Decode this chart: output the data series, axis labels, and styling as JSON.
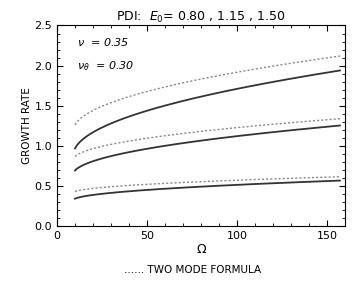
{
  "title": "PDI:  $E_0$= 0.80 , 1.15 , 1.50",
  "xlabel": "$\\Omega$",
  "ylabel": "GROWTH RATE",
  "legend_label": "...... TWO MODE FORMULA",
  "annotation1": "$\\nu$  = 0.35",
  "annotation2": "$\\nu_\\theta$  = 0.30",
  "xlim": [
    0,
    160
  ],
  "ylim": [
    0.0,
    2.5
  ],
  "xticks": [
    0,
    50,
    100,
    150
  ],
  "yticks": [
    0.0,
    0.5,
    1.0,
    1.5,
    2.0,
    2.5
  ],
  "solid_color": "#333333",
  "dotted_color": "#888888",
  "curves": [
    {
      "E0": 0.8,
      "solid_start": 0.345,
      "solid_end": 0.57,
      "dotted_start": 0.435,
      "dotted_end": 0.618
    },
    {
      "E0": 1.15,
      "solid_start": 0.695,
      "solid_end": 1.255,
      "dotted_start": 0.87,
      "dotted_end": 1.34
    },
    {
      "E0": 1.5,
      "solid_start": 0.97,
      "solid_end": 1.94,
      "dotted_start": 1.265,
      "dotted_end": 2.12
    }
  ],
  "x_start": 10,
  "x_end": 157,
  "solid_lw": 1.3,
  "dotted_lw": 1.0
}
